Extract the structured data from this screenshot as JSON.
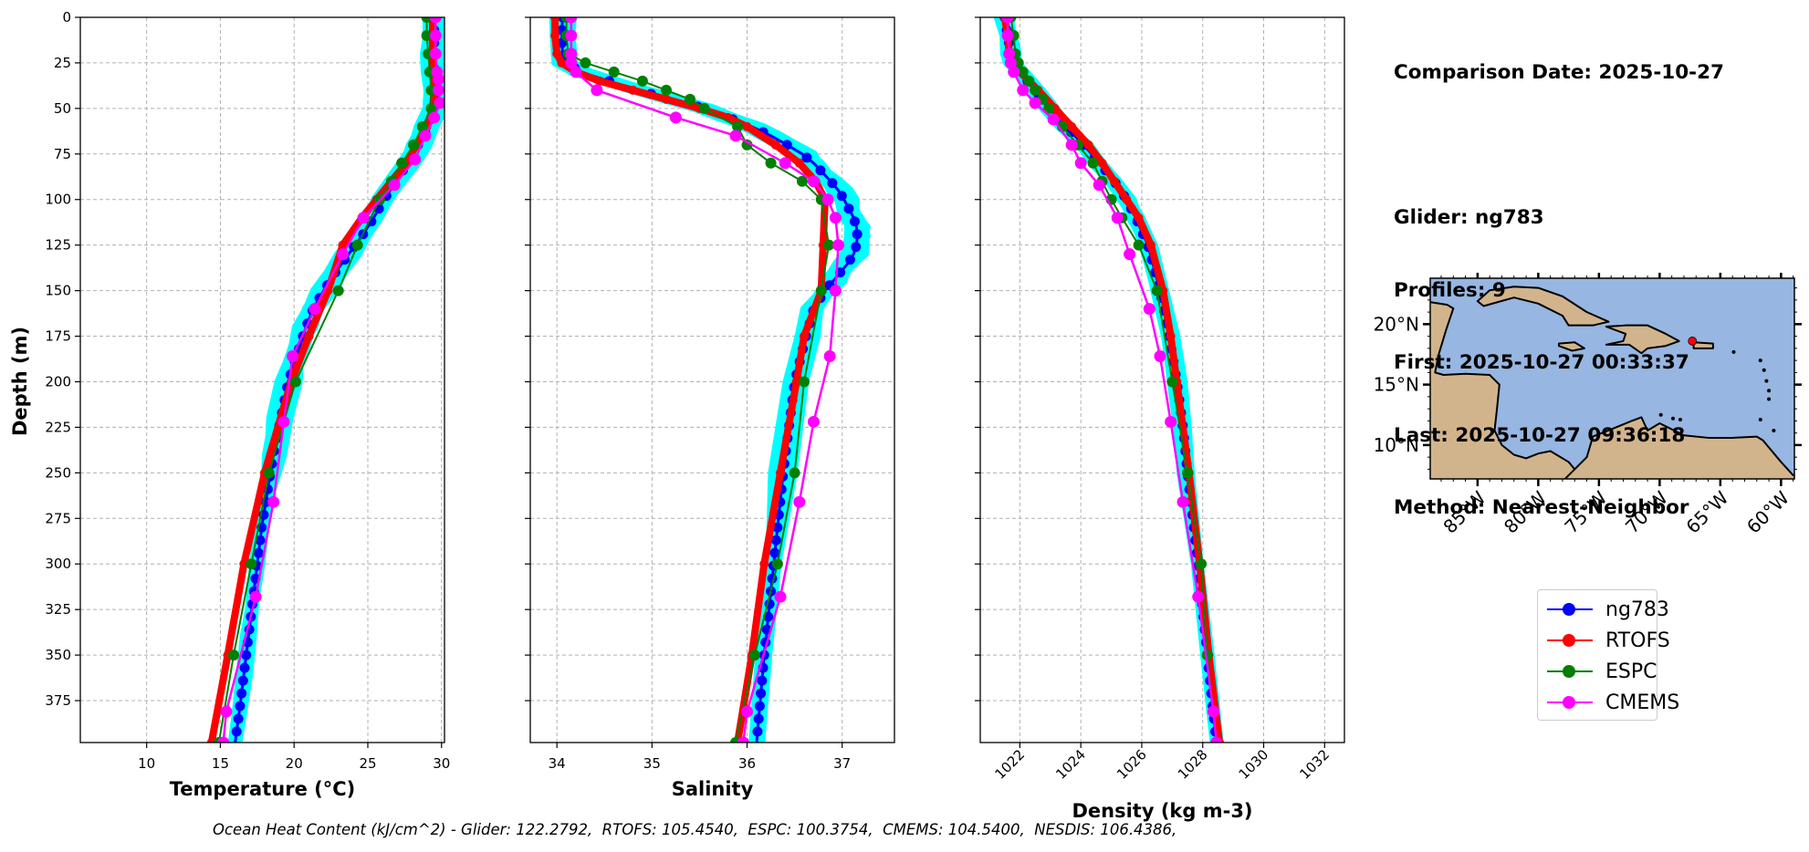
{
  "info": {
    "comparison_date": "Comparison Date: 2025-10-27",
    "glider": "Glider: ng783",
    "profiles": "Profiles: 9",
    "first": "First: 2025-10-27 00:33:37",
    "last": "Last: 2025-10-27 09:36:18",
    "method": "Method: Nearest-Neighbor"
  },
  "footer": {
    "ohc_text": "Ocean Heat Content (kJ/cm^2) - Glider: 122.2792,  RTOFS: 105.4540,  ESPC: 100.3754,  CMEMS: 104.5400,  NESDIS: 106.4386,"
  },
  "legend": [
    {
      "label": "ng783",
      "color": "#0000ff"
    },
    {
      "label": "RTOFS",
      "color": "#ff0000"
    },
    {
      "label": "ESPC",
      "color": "#008000"
    },
    {
      "label": "CMEMS",
      "color": "#ff00ff"
    }
  ],
  "colors": {
    "glider_individual": "#00ffff",
    "ocean": "#97b6e1",
    "land": "#d2b48c",
    "grid": "#b0b0b0"
  },
  "map": {
    "lon_range": [
      -88.9,
      -58.9
    ],
    "lat_range": [
      7.2,
      23.8
    ],
    "lon_ticks": [
      -85,
      -80,
      -75,
      -70,
      -65,
      -60
    ],
    "lon_tick_labels": [
      "85°W",
      "80°W",
      "75°W",
      "70°W",
      "65°W",
      "60°W"
    ],
    "lat_ticks": [
      10,
      15,
      20
    ],
    "lat_tick_labels": [
      "10°N",
      "15°N",
      "20°N"
    ],
    "glider_location": {
      "lon": -67.3,
      "lat": 18.6
    }
  },
  "chart_data": [
    {
      "type": "line",
      "panel": "temperature",
      "xlabel": "Temperature (°C)",
      "ylabel": "Depth (m)",
      "xlim": [
        5.5,
        30.2
      ],
      "ylim": [
        398,
        0
      ],
      "xticks": [
        10,
        15,
        20,
        25,
        30
      ],
      "yticks": [
        0,
        25,
        50,
        75,
        100,
        125,
        150,
        175,
        200,
        225,
        250,
        275,
        300,
        325,
        350,
        375
      ],
      "grid": true,
      "series": [
        {
          "name": "ng783",
          "depth": [
            0,
            10,
            20,
            30,
            40,
            50,
            60,
            70,
            80,
            90,
            100,
            110,
            120,
            130,
            140,
            150,
            160,
            170,
            180,
            190,
            200,
            220,
            240,
            260,
            280,
            300,
            320,
            340,
            360,
            380,
            398
          ],
          "values": [
            29.5,
            29.5,
            29.5,
            29.5,
            29.6,
            29.5,
            29.1,
            28.4,
            27.7,
            26.9,
            26.1,
            25.4,
            24.6,
            23.7,
            22.8,
            22.0,
            21.3,
            20.8,
            20.4,
            20.0,
            19.6,
            19.1,
            18.6,
            18.2,
            17.8,
            17.5,
            17.2,
            16.9,
            16.6,
            16.3,
            16.0
          ]
        },
        {
          "name": "RTOFS",
          "depth": [
            0,
            10,
            20,
            30,
            40,
            50,
            60,
            70,
            80,
            90,
            100,
            110,
            125,
            150,
            175,
            200,
            250,
            300,
            350,
            398
          ],
          "values": [
            29.4,
            29.4,
            29.4,
            29.5,
            29.5,
            29.4,
            29.0,
            28.3,
            27.6,
            26.6,
            25.6,
            24.6,
            23.3,
            22.3,
            21.0,
            19.8,
            18.0,
            16.6,
            15.5,
            14.4
          ]
        },
        {
          "name": "ESPC",
          "depth": [
            0,
            10,
            20,
            30,
            40,
            50,
            60,
            70,
            80,
            90,
            100,
            125,
            150,
            200,
            250,
            300,
            350,
            398
          ],
          "values": [
            29.0,
            29.0,
            29.1,
            29.2,
            29.3,
            29.3,
            28.7,
            28.1,
            27.3,
            26.6,
            25.8,
            24.3,
            23.0,
            20.1,
            18.3,
            17.1,
            15.9,
            14.9
          ]
        },
        {
          "name": "CMEMS",
          "depth": [
            0,
            10,
            20,
            30,
            34,
            40,
            47,
            55,
            65,
            78,
            92,
            110,
            130,
            160,
            186,
            222,
            266,
            318,
            381,
            398
          ],
          "values": [
            29.6,
            29.6,
            29.6,
            29.7,
            29.8,
            29.8,
            29.9,
            29.5,
            28.9,
            28.2,
            26.8,
            24.7,
            23.3,
            21.4,
            19.9,
            19.3,
            18.6,
            17.4,
            15.4,
            15.2
          ]
        }
      ]
    },
    {
      "type": "line",
      "panel": "salinity",
      "xlabel": "Salinity",
      "ylabel": "",
      "xlim": [
        33.72,
        37.55
      ],
      "ylim": [
        398,
        0
      ],
      "xticks": [
        34,
        35,
        36,
        37
      ],
      "grid": true,
      "series": [
        {
          "name": "ng783",
          "depth": [
            0,
            10,
            20,
            25,
            30,
            35,
            40,
            45,
            50,
            55,
            60,
            65,
            70,
            75,
            80,
            85,
            90,
            95,
            100,
            105,
            110,
            115,
            120,
            125,
            130,
            135,
            140,
            145,
            150,
            160,
            175,
            200,
            250,
            300,
            350,
            398
          ],
          "values": [
            34.06,
            34.05,
            34.06,
            34.1,
            34.25,
            34.55,
            34.85,
            35.2,
            35.55,
            35.8,
            36.05,
            36.25,
            36.42,
            36.58,
            36.7,
            36.79,
            36.88,
            36.96,
            37.02,
            37.07,
            37.12,
            37.15,
            37.16,
            37.15,
            37.12,
            37.06,
            36.98,
            36.9,
            36.82,
            36.7,
            36.62,
            36.5,
            36.38,
            36.28,
            36.18,
            36.1
          ]
        },
        {
          "name": "RTOFS",
          "depth": [
            0,
            10,
            20,
            25,
            30,
            35,
            40,
            45,
            50,
            55,
            60,
            70,
            80,
            90,
            100,
            125,
            150,
            175,
            200,
            250,
            300,
            350,
            398
          ],
          "values": [
            33.98,
            33.98,
            34.0,
            34.05,
            34.2,
            34.45,
            34.8,
            35.15,
            35.5,
            35.8,
            36.0,
            36.3,
            36.55,
            36.72,
            36.82,
            36.8,
            36.78,
            36.6,
            36.52,
            36.35,
            36.18,
            36.05,
            35.9
          ]
        },
        {
          "name": "ESPC",
          "depth": [
            0,
            10,
            20,
            25,
            30,
            35,
            40,
            45,
            50,
            60,
            70,
            80,
            90,
            100,
            125,
            150,
            200,
            250,
            300,
            350,
            398
          ],
          "values": [
            34.1,
            34.1,
            34.12,
            34.3,
            34.6,
            34.9,
            35.15,
            35.4,
            35.55,
            35.9,
            36.0,
            36.25,
            36.58,
            36.78,
            36.86,
            36.78,
            36.6,
            36.5,
            36.32,
            36.08,
            35.88
          ]
        },
        {
          "name": "CMEMS",
          "depth": [
            0,
            10,
            20,
            25,
            30,
            40,
            55,
            65,
            80,
            90,
            100,
            110,
            125,
            150,
            186,
            222,
            266,
            318,
            381,
            398
          ],
          "values": [
            34.15,
            34.15,
            34.15,
            34.15,
            34.2,
            34.42,
            35.25,
            35.88,
            36.4,
            36.7,
            36.85,
            36.93,
            36.96,
            36.93,
            36.87,
            36.7,
            36.55,
            36.35,
            36.0,
            35.96
          ]
        }
      ]
    },
    {
      "type": "line",
      "panel": "density",
      "xlabel": "Density (kg m-3)",
      "ylabel": "",
      "xlim": [
        1020.7,
        1032.65
      ],
      "ylim": [
        398,
        0
      ],
      "xticks": [
        1022,
        1024,
        1026,
        1028,
        1030,
        1032
      ],
      "grid": true,
      "series": [
        {
          "name": "ng783",
          "depth": [
            0,
            10,
            20,
            25,
            30,
            40,
            50,
            60,
            70,
            80,
            90,
            100,
            110,
            125,
            150,
            175,
            200,
            225,
            250,
            300,
            350,
            398
          ],
          "values": [
            1021.5,
            1021.6,
            1021.7,
            1021.8,
            1022.0,
            1022.5,
            1023.0,
            1023.5,
            1024.1,
            1024.6,
            1025.1,
            1025.5,
            1025.8,
            1026.2,
            1026.6,
            1026.9,
            1027.15,
            1027.35,
            1027.5,
            1027.85,
            1028.15,
            1028.45
          ]
        },
        {
          "name": "RTOFS",
          "depth": [
            0,
            10,
            20,
            25,
            30,
            40,
            50,
            60,
            70,
            80,
            90,
            100,
            110,
            125,
            150,
            175,
            200,
            250,
            300,
            350,
            398
          ],
          "values": [
            1021.5,
            1021.6,
            1021.65,
            1021.75,
            1022.0,
            1022.6,
            1023.15,
            1023.7,
            1024.25,
            1024.7,
            1025.1,
            1025.5,
            1025.9,
            1026.3,
            1026.7,
            1026.95,
            1027.15,
            1027.55,
            1027.9,
            1028.2,
            1028.55
          ]
        },
        {
          "name": "ESPC",
          "depth": [
            0,
            10,
            20,
            25,
            30,
            35,
            40,
            45,
            50,
            60,
            70,
            80,
            90,
            100,
            110,
            125,
            150,
            200,
            250,
            300,
            350,
            398
          ],
          "values": [
            1021.7,
            1021.8,
            1021.85,
            1021.95,
            1022.1,
            1022.3,
            1022.5,
            1022.75,
            1022.95,
            1023.4,
            1023.9,
            1024.4,
            1024.7,
            1025.0,
            1025.35,
            1025.9,
            1026.5,
            1027.0,
            1027.5,
            1027.95,
            1028.15,
            1028.45
          ]
        },
        {
          "name": "CMEMS",
          "depth": [
            0,
            10,
            20,
            25,
            30,
            40,
            47,
            56,
            70,
            80,
            92,
            110,
            130,
            160,
            186,
            222,
            266,
            318,
            381,
            398
          ],
          "values": [
            1021.6,
            1021.6,
            1021.65,
            1021.7,
            1021.8,
            1022.1,
            1022.5,
            1023.1,
            1023.7,
            1024.0,
            1024.6,
            1025.2,
            1025.6,
            1026.25,
            1026.6,
            1026.95,
            1027.35,
            1027.85,
            1028.35,
            1028.45
          ]
        }
      ]
    }
  ]
}
